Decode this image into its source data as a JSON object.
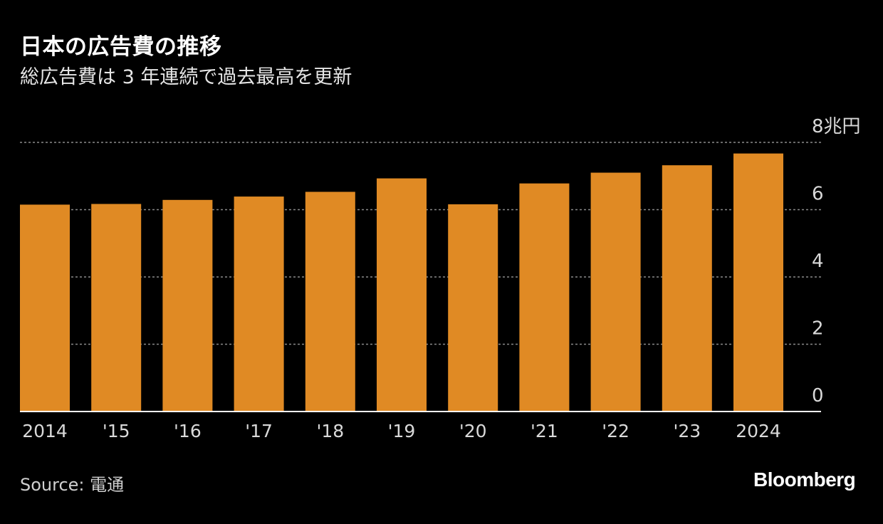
{
  "chart_data": {
    "type": "bar",
    "title": "日本の広告費の推移",
    "subtitle": "総広告費は 3 年連続で過去最高を更新",
    "categories": [
      "2014",
      "'15",
      "'16",
      "'17",
      "'18",
      "'19",
      "'20",
      "'21",
      "'22",
      "'23",
      "2024"
    ],
    "values": [
      6.15,
      6.17,
      6.29,
      6.39,
      6.53,
      6.93,
      6.16,
      6.78,
      7.1,
      7.32,
      7.67
    ],
    "ylim": [
      0,
      8
    ],
    "yticks": [
      0,
      2,
      4,
      6,
      8
    ],
    "ytick_labels": [
      "0",
      "2",
      "4",
      "6",
      "8兆円"
    ],
    "grid": true,
    "bar_color": "#e08a24",
    "grid_color": "#8a8a8a",
    "axis_color": "#ffffff"
  },
  "source": "Source:  電通",
  "logo": "Bloomberg"
}
